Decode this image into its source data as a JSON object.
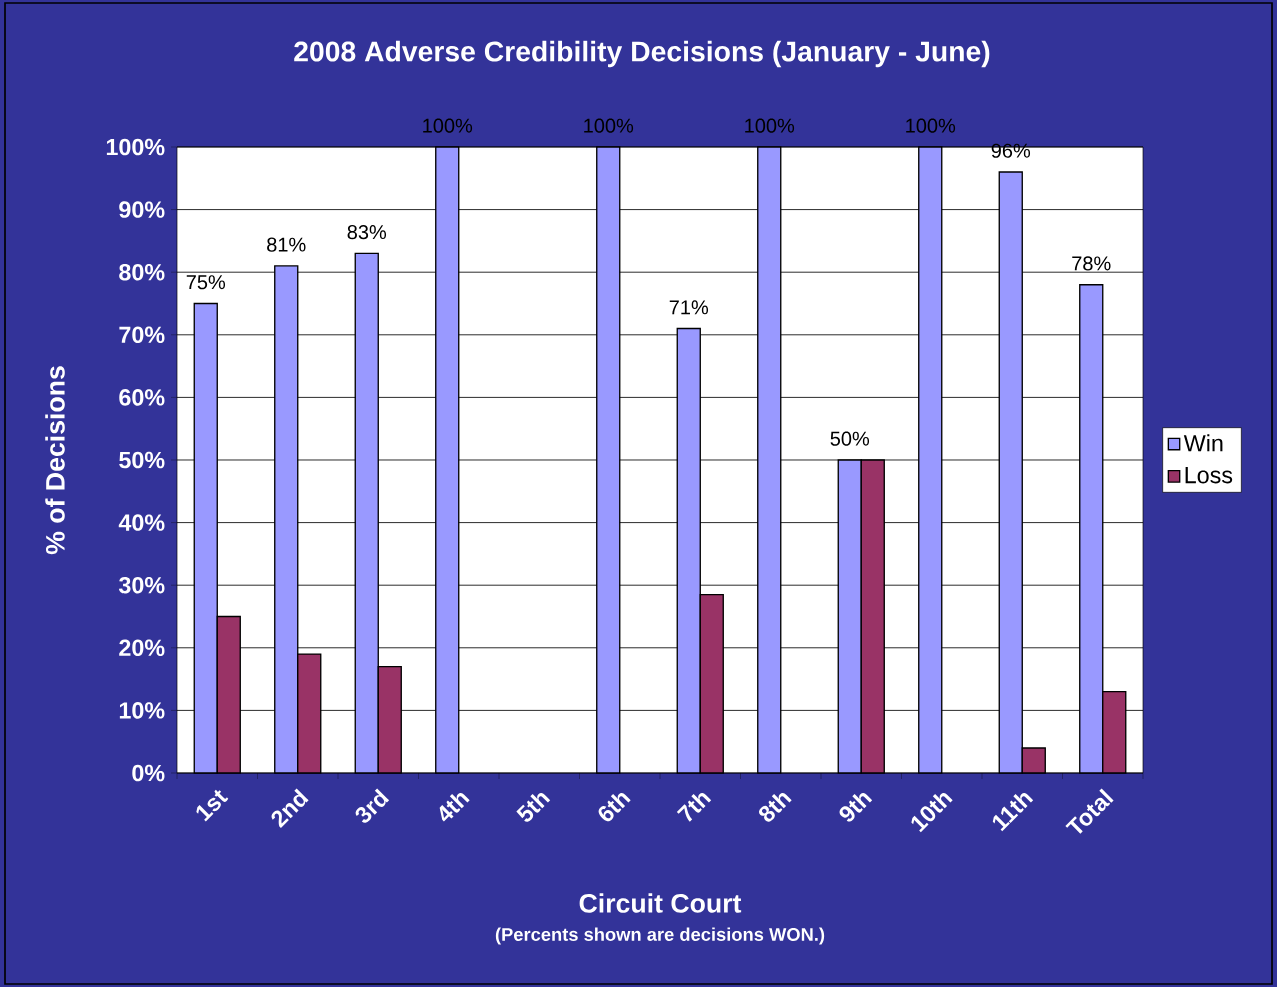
{
  "chart_data": {
    "type": "bar",
    "title": "2008 Adverse Credibility Decisions (January - June)",
    "xlabel": "Circuit Court",
    "ylabel": "% of Decisions",
    "annotations": [
      "(Percents shown are decisions WON.)"
    ],
    "categories": [
      "1st",
      "2nd",
      "3rd",
      "4th",
      "5th",
      "6th",
      "7th",
      "8th",
      "9th",
      "10th",
      "11th",
      "Total"
    ],
    "series": [
      {
        "name": "Win",
        "color": "#9999ff",
        "values": [
          75,
          81,
          83,
          100,
          null,
          100,
          71,
          100,
          50,
          100,
          96,
          78
        ],
        "value_labels": [
          "75%",
          "81%",
          "83%",
          "100%",
          null,
          "100%",
          "71%",
          "100%",
          "50%",
          "100%",
          "96%",
          "78%"
        ]
      },
      {
        "name": "Loss",
        "color": "#993366",
        "values": [
          25,
          19,
          17,
          null,
          null,
          null,
          28.5,
          null,
          50,
          null,
          4,
          13
        ]
      }
    ],
    "ylim": [
      0,
      100
    ],
    "yticks": [
      {
        "value": 0,
        "label": "0%"
      },
      {
        "value": 10,
        "label": "10%"
      },
      {
        "value": 20,
        "label": "20%"
      },
      {
        "value": 30,
        "label": "30%"
      },
      {
        "value": 40,
        "label": "40%"
      },
      {
        "value": 50,
        "label": "50%"
      },
      {
        "value": 60,
        "label": "60%"
      },
      {
        "value": 70,
        "label": "70%"
      },
      {
        "value": 80,
        "label": "80%"
      },
      {
        "value": 90,
        "label": "90%"
      },
      {
        "value": 100,
        "label": "100%"
      }
    ],
    "grid": "y",
    "legend": "right"
  }
}
